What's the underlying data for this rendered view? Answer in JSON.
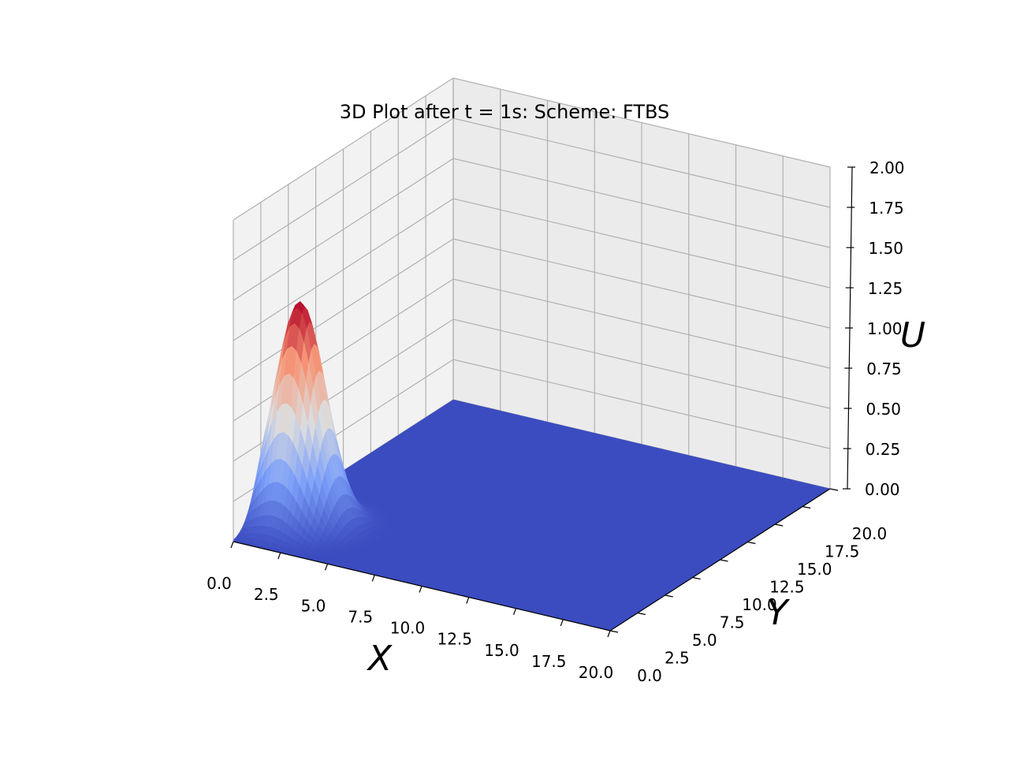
{
  "chart_data": {
    "type": "surface",
    "title": "3D Plot after t = 1s: Scheme: FTBS",
    "xlabel": "X",
    "ylabel": "Y",
    "zlabel": "U",
    "xlim": [
      0,
      20
    ],
    "ylim": [
      0,
      20
    ],
    "zlim": [
      0,
      2
    ],
    "x_ticks": [
      "0.0",
      "2.5",
      "5.0",
      "7.5",
      "10.0",
      "12.5",
      "15.0",
      "17.5",
      "20.0"
    ],
    "y_ticks": [
      "0.0",
      "2.5",
      "5.0",
      "7.5",
      "10.0",
      "12.5",
      "15.0",
      "17.5",
      "20.0"
    ],
    "z_ticks": [
      "0.00",
      "0.25",
      "0.50",
      "0.75",
      "1.00",
      "1.25",
      "1.50",
      "1.75",
      "2.00"
    ],
    "colormap": "coolwarm",
    "colors": {
      "low": "#3b4cc0",
      "high": "#b40426",
      "pane_left": "#f2f2f2",
      "pane_back": "#ebebeb",
      "grid": "#b0b0b0"
    },
    "surface": {
      "baseline": 0,
      "peak": {
        "x": 1.5,
        "y": 3.5,
        "u": 1.38
      },
      "spread_x": 1.2,
      "spread_y": 1.2
    },
    "grid": true
  }
}
